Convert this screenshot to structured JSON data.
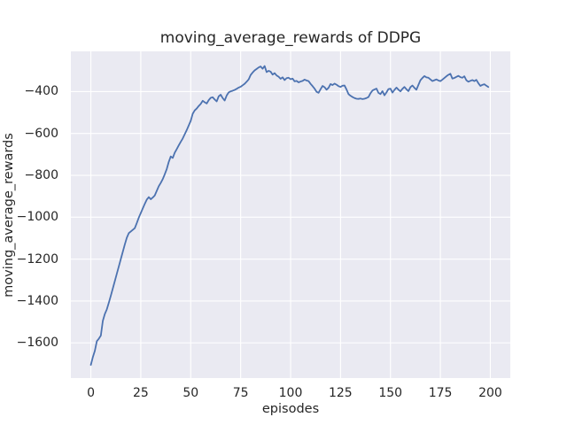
{
  "figure": {
    "background": "#ffffff"
  },
  "chart_data": {
    "type": "line",
    "title": "moving_average_rewards of DDPG",
    "xlabel": "episodes",
    "ylabel": "moving_average_rewards",
    "x_tick_labels": [
      "0",
      "25",
      "50",
      "75",
      "100",
      "125",
      "150",
      "175",
      "200"
    ],
    "x_tick_values": [
      0,
      25,
      50,
      75,
      100,
      125,
      150,
      175,
      200
    ],
    "y_tick_labels": [
      "−400",
      "−600",
      "−800",
      "−1000",
      "−1200",
      "−1400",
      "−1600"
    ],
    "y_tick_values": [
      -400,
      -600,
      -800,
      -1000,
      -1200,
      -1400,
      -1600
    ],
    "xlim": [
      -10,
      210
    ],
    "ylim": [
      -1768,
      -208
    ],
    "grid": true,
    "legend": null,
    "line_color": "#4c72b0",
    "axes_background": "#eaeaf2",
    "grid_color": "#ffffff",
    "text_color": "#262626",
    "series": [
      {
        "name": "moving_average_rewards",
        "x": [
          0,
          1,
          2,
          3,
          4,
          5,
          6,
          7,
          8,
          9,
          10,
          11,
          12,
          13,
          14,
          15,
          16,
          17,
          18,
          19,
          20,
          21,
          22,
          23,
          24,
          25,
          26,
          27,
          28,
          29,
          30,
          31,
          32,
          33,
          34,
          35,
          36,
          37,
          38,
          39,
          40,
          41,
          42,
          43,
          44,
          45,
          46,
          47,
          48,
          49,
          50,
          51,
          52,
          53,
          54,
          55,
          56,
          57,
          58,
          59,
          60,
          61,
          62,
          63,
          64,
          65,
          66,
          67,
          68,
          69,
          70,
          71,
          72,
          73,
          74,
          75,
          76,
          77,
          78,
          79,
          80,
          81,
          82,
          83,
          84,
          85,
          86,
          87,
          88,
          89,
          90,
          91,
          92,
          93,
          94,
          95,
          96,
          97,
          98,
          99,
          100,
          101,
          102,
          103,
          104,
          105,
          106,
          107,
          108,
          109,
          110,
          111,
          112,
          113,
          114,
          115,
          116,
          117,
          118,
          119,
          120,
          121,
          122,
          123,
          124,
          125,
          126,
          127,
          128,
          129,
          130,
          131,
          132,
          133,
          134,
          135,
          136,
          137,
          138,
          139,
          140,
          141,
          142,
          143,
          144,
          145,
          146,
          147,
          148,
          149,
          150,
          151,
          152,
          153,
          154,
          155,
          156,
          157,
          158,
          159,
          160,
          161,
          162,
          163,
          164,
          165,
          166,
          167,
          168,
          169,
          170,
          171,
          172,
          173,
          174,
          175,
          176,
          177,
          178,
          179,
          180,
          181,
          182,
          183,
          184,
          185,
          186,
          187,
          188,
          189,
          190,
          191,
          192,
          193,
          194,
          195,
          196,
          197,
          198,
          199
        ],
        "y": [
          -1705,
          -1668,
          -1638,
          -1592,
          -1580,
          -1565,
          -1495,
          -1462,
          -1440,
          -1408,
          -1375,
          -1340,
          -1305,
          -1270,
          -1235,
          -1200,
          -1165,
          -1130,
          -1098,
          -1076,
          -1068,
          -1060,
          -1052,
          -1028,
          -1002,
          -980,
          -958,
          -936,
          -916,
          -904,
          -914,
          -906,
          -896,
          -874,
          -852,
          -836,
          -818,
          -795,
          -770,
          -736,
          -710,
          -717,
          -692,
          -675,
          -657,
          -640,
          -624,
          -604,
          -584,
          -562,
          -540,
          -506,
          -490,
          -481,
          -469,
          -459,
          -444,
          -451,
          -457,
          -441,
          -430,
          -427,
          -438,
          -447,
          -423,
          -415,
          -431,
          -443,
          -419,
          -404,
          -399,
          -396,
          -392,
          -387,
          -381,
          -377,
          -370,
          -363,
          -353,
          -342,
          -321,
          -309,
          -299,
          -292,
          -285,
          -280,
          -291,
          -278,
          -307,
          -301,
          -305,
          -319,
          -312,
          -323,
          -329,
          -339,
          -332,
          -345,
          -336,
          -334,
          -341,
          -338,
          -351,
          -349,
          -356,
          -352,
          -349,
          -343,
          -347,
          -350,
          -363,
          -374,
          -386,
          -401,
          -406,
          -389,
          -373,
          -379,
          -391,
          -382,
          -364,
          -369,
          -362,
          -367,
          -374,
          -378,
          -372,
          -371,
          -390,
          -412,
          -420,
          -426,
          -431,
          -434,
          -435,
          -433,
          -436,
          -434,
          -431,
          -426,
          -408,
          -395,
          -390,
          -386,
          -406,
          -412,
          -398,
          -418,
          -404,
          -388,
          -386,
          -405,
          -392,
          -381,
          -391,
          -399,
          -387,
          -378,
          -389,
          -398,
          -379,
          -371,
          -382,
          -391,
          -368,
          -346,
          -335,
          -326,
          -332,
          -334,
          -342,
          -350,
          -346,
          -342,
          -347,
          -350,
          -343,
          -335,
          -327,
          -320,
          -315,
          -338,
          -335,
          -330,
          -325,
          -331,
          -334,
          -327,
          -346,
          -353,
          -349,
          -345,
          -350,
          -344,
          -360,
          -373,
          -368,
          -365,
          -372,
          -378
        ]
      }
    ]
  }
}
